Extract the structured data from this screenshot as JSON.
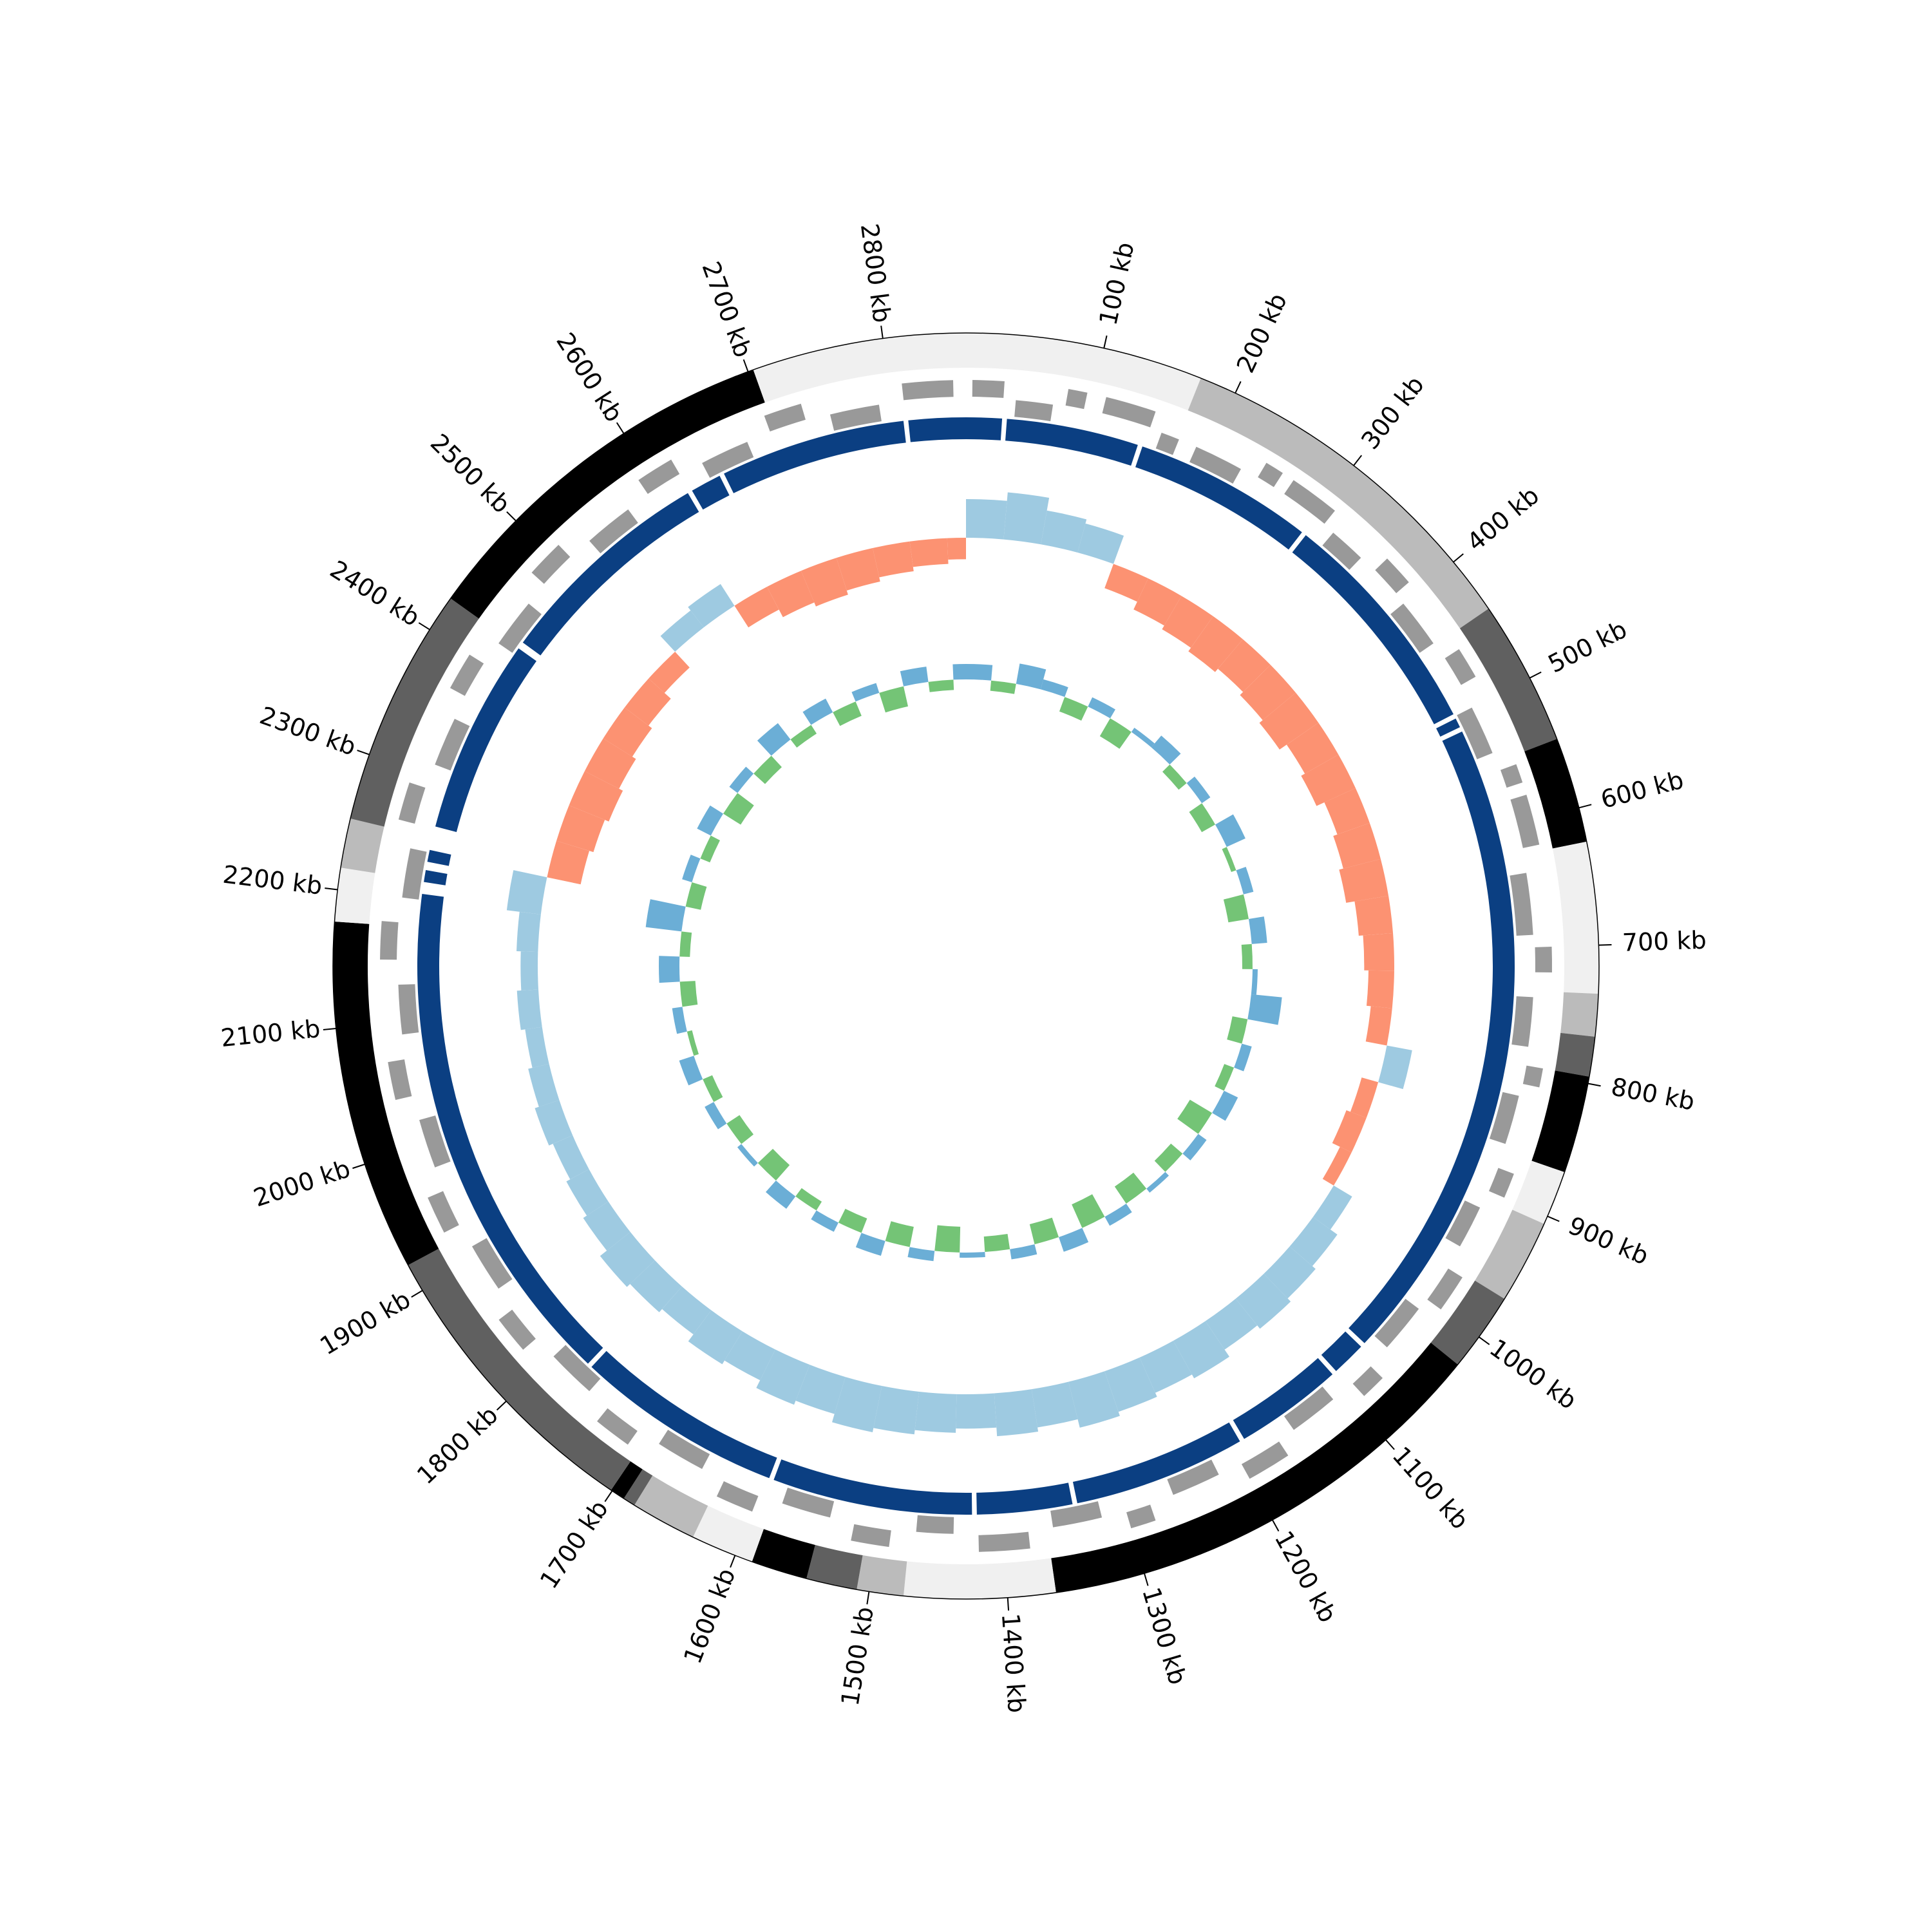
{
  "chart_data": {
    "type": "circos",
    "xlim": [
      0,
      2860
    ],
    "xticks": [
      {
        "value": 100,
        "label": "100 kb"
      },
      {
        "value": 200,
        "label": "200 kb"
      },
      {
        "value": 300,
        "label": "300 kb"
      },
      {
        "value": 400,
        "label": "400 kb"
      },
      {
        "value": 500,
        "label": "500 kb"
      },
      {
        "value": 600,
        "label": "600 kb"
      },
      {
        "value": 700,
        "label": "700 kb"
      },
      {
        "value": 800,
        "label": "800 kb"
      },
      {
        "value": 900,
        "label": "900 kb"
      },
      {
        "value": 1000,
        "label": "1000 kb"
      },
      {
        "value": 1100,
        "label": "1100 kb"
      },
      {
        "value": 1200,
        "label": "1200 kb"
      },
      {
        "value": 1300,
        "label": "1300 kb"
      },
      {
        "value": 1400,
        "label": "1400 kb"
      },
      {
        "value": 1500,
        "label": "1500 kb"
      },
      {
        "value": 1600,
        "label": "1600 kb"
      },
      {
        "value": 1700,
        "label": "1700 kb"
      },
      {
        "value": 1800,
        "label": "1800 kb"
      },
      {
        "value": 1900,
        "label": "1900 kb"
      },
      {
        "value": 2000,
        "label": "2000 kb"
      },
      {
        "value": 2100,
        "label": "2100 kb"
      },
      {
        "value": 2200,
        "label": "2200 kb"
      },
      {
        "value": 2300,
        "label": "2300 kb"
      },
      {
        "value": 2400,
        "label": "2400 kb"
      },
      {
        "value": 2500,
        "label": "2500 kb"
      },
      {
        "value": 2600,
        "label": "2600 kb"
      },
      {
        "value": 2700,
        "label": "2700 kb"
      },
      {
        "value": 2800,
        "label": "2800 kb"
      }
    ],
    "bands": [
      {
        "start": 0,
        "end": 173,
        "color": "#f0f0f0"
      },
      {
        "start": 173,
        "end": 442,
        "color": "#bbbbbb"
      },
      {
        "start": 442,
        "end": 548,
        "color": "#606060"
      },
      {
        "start": 548,
        "end": 625,
        "color": "#000000"
      },
      {
        "start": 625,
        "end": 735,
        "color": "#f0f0f0"
      },
      {
        "start": 735,
        "end": 766,
        "color": "#bbbbbb"
      },
      {
        "start": 766,
        "end": 795,
        "color": "#606060"
      },
      {
        "start": 795,
        "end": 866,
        "color": "#000000"
      },
      {
        "start": 866,
        "end": 906,
        "color": "#f0f0f0"
      },
      {
        "start": 906,
        "end": 967,
        "color": "#bbbbbb"
      },
      {
        "start": 967,
        "end": 1025,
        "color": "#606060"
      },
      {
        "start": 1025,
        "end": 1365,
        "color": "#000000"
      },
      {
        "start": 1365,
        "end": 1475,
        "color": "#f0f0f0"
      },
      {
        "start": 1475,
        "end": 1509,
        "color": "#bbbbbb"
      },
      {
        "start": 1509,
        "end": 1546,
        "color": "#606060"
      },
      {
        "start": 1546,
        "end": 1587,
        "color": "#000000"
      },
      {
        "start": 1587,
        "end": 1633,
        "color": "#f0f0f0"
      },
      {
        "start": 1633,
        "end": 1681,
        "color": "#bbbbbb"
      },
      {
        "start": 1681,
        "end": 1690,
        "color": "#606060"
      },
      {
        "start": 1690,
        "end": 1701,
        "color": "#000000"
      },
      {
        "start": 1701,
        "end": 1921,
        "color": "#606060"
      },
      {
        "start": 1921,
        "end": 2177,
        "color": "#000000"
      },
      {
        "start": 2177,
        "end": 2216,
        "color": "#f0f0f0"
      },
      {
        "start": 2216,
        "end": 2252,
        "color": "#bbbbbb"
      },
      {
        "start": 2252,
        "end": 2427,
        "color": "#606060"
      },
      {
        "start": 2427,
        "end": 2704,
        "color": "#000000"
      },
      {
        "start": 2704,
        "end": 2860,
        "color": "#f0f0f0"
      }
    ],
    "gene_color": "#999999",
    "genes": [
      {
        "start": 5,
        "end": 30,
        "strand": 1
      },
      {
        "start": 40,
        "end": 70,
        "strand": -1
      },
      {
        "start": 80,
        "end": 95,
        "strand": 1
      },
      {
        "start": 110,
        "end": 150,
        "strand": 1
      },
      {
        "start": 160,
        "end": 175,
        "strand": -1
      },
      {
        "start": 190,
        "end": 230,
        "strand": -1
      },
      {
        "start": 245,
        "end": 260,
        "strand": 1
      },
      {
        "start": 270,
        "end": 310,
        "strand": 1
      },
      {
        "start": 320,
        "end": 350,
        "strand": -1
      },
      {
        "start": 365,
        "end": 390,
        "strand": 1
      },
      {
        "start": 400,
        "end": 440,
        "strand": -1
      },
      {
        "start": 455,
        "end": 480,
        "strand": 1
      },
      {
        "start": 500,
        "end": 540,
        "strand": -1
      },
      {
        "start": 555,
        "end": 570,
        "strand": 1
      },
      {
        "start": 580,
        "end": 620,
        "strand": 1
      },
      {
        "start": 640,
        "end": 690,
        "strand": -1
      },
      {
        "start": 700,
        "end": 720,
        "strand": 1
      },
      {
        "start": 740,
        "end": 780,
        "strand": -1
      },
      {
        "start": 795,
        "end": 810,
        "strand": 1
      },
      {
        "start": 820,
        "end": 860,
        "strand": -1
      },
      {
        "start": 880,
        "end": 900,
        "strand": 1
      },
      {
        "start": 915,
        "end": 950,
        "strand": -1
      },
      {
        "start": 970,
        "end": 1000,
        "strand": 1
      },
      {
        "start": 1010,
        "end": 1050,
        "strand": -1
      },
      {
        "start": 1070,
        "end": 1090,
        "strand": 1
      },
      {
        "start": 1110,
        "end": 1150,
        "strand": -1
      },
      {
        "start": 1165,
        "end": 1200,
        "strand": 1
      },
      {
        "start": 1220,
        "end": 1260,
        "strand": -1
      },
      {
        "start": 1280,
        "end": 1300,
        "strand": 1
      },
      {
        "start": 1320,
        "end": 1360,
        "strand": -1
      },
      {
        "start": 1380,
        "end": 1420,
        "strand": 1
      },
      {
        "start": 1440,
        "end": 1470,
        "strand": -1
      },
      {
        "start": 1490,
        "end": 1520,
        "strand": 1
      },
      {
        "start": 1540,
        "end": 1580,
        "strand": -1
      },
      {
        "start": 1600,
        "end": 1630,
        "strand": 1
      },
      {
        "start": 1650,
        "end": 1690,
        "strand": -1
      },
      {
        "start": 1710,
        "end": 1740,
        "strand": 1
      },
      {
        "start": 1760,
        "end": 1800,
        "strand": -1
      },
      {
        "start": 1820,
        "end": 1850,
        "strand": 1
      },
      {
        "start": 1870,
        "end": 1910,
        "strand": -1
      },
      {
        "start": 1930,
        "end": 1960,
        "strand": 1
      },
      {
        "start": 1980,
        "end": 2020,
        "strand": -1
      },
      {
        "start": 2040,
        "end": 2070,
        "strand": 1
      },
      {
        "start": 2090,
        "end": 2130,
        "strand": -1
      },
      {
        "start": 2150,
        "end": 2180,
        "strand": 1
      },
      {
        "start": 2200,
        "end": 2240,
        "strand": -1
      },
      {
        "start": 2260,
        "end": 2290,
        "strand": 1
      },
      {
        "start": 2310,
        "end": 2350,
        "strand": -1
      },
      {
        "start": 2370,
        "end": 2400,
        "strand": 1
      },
      {
        "start": 2420,
        "end": 2460,
        "strand": -1
      },
      {
        "start": 2480,
        "end": 2510,
        "strand": 1
      },
      {
        "start": 2530,
        "end": 2570,
        "strand": -1
      },
      {
        "start": 2590,
        "end": 2620,
        "strand": 1
      },
      {
        "start": 2640,
        "end": 2680,
        "strand": -1
      },
      {
        "start": 2700,
        "end": 2730,
        "strand": 1
      },
      {
        "start": 2750,
        "end": 2790,
        "strand": -1
      },
      {
        "start": 2810,
        "end": 2850,
        "strand": 1
      }
    ],
    "contig_color": "#0b3f82",
    "contigs": [
      {
        "start": 0,
        "end": 30
      },
      {
        "start": 34,
        "end": 145
      },
      {
        "start": 149,
        "end": 300
      },
      {
        "start": 304,
        "end": 498
      },
      {
        "start": 502,
        "end": 510
      },
      {
        "start": 514,
        "end": 1060
      },
      {
        "start": 1064,
        "end": 1093
      },
      {
        "start": 1097,
        "end": 1188
      },
      {
        "start": 1192,
        "end": 1337
      },
      {
        "start": 1341,
        "end": 1421
      },
      {
        "start": 1425,
        "end": 1593
      },
      {
        "start": 1597,
        "end": 1772
      },
      {
        "start": 1776,
        "end": 2205
      },
      {
        "start": 2215,
        "end": 2225
      },
      {
        "start": 2232,
        "end": 2242
      },
      {
        "start": 2262,
        "end": 2426
      },
      {
        "start": 2432,
        "end": 2618
      },
      {
        "start": 2622,
        "end": 2648
      },
      {
        "start": 2652,
        "end": 2808
      },
      {
        "start": 2812,
        "end": 2860
      }
    ],
    "x": [
      0,
      40,
      80,
      120,
      160,
      200,
      240,
      280,
      320,
      360,
      400,
      440,
      480,
      520,
      560,
      600,
      640,
      680,
      720,
      760,
      800,
      840,
      880,
      920,
      960,
      1000,
      1040,
      1080,
      1120,
      1160,
      1200,
      1240,
      1280,
      1320,
      1360,
      1400,
      1440,
      1480,
      1520,
      1560,
      1600,
      1640,
      1680,
      1720,
      1760,
      1800,
      1840,
      1880,
      1920,
      1960,
      2000,
      2040,
      2080,
      2120,
      2160,
      2200,
      2240,
      2280,
      2320,
      2360,
      2400,
      2440,
      2480,
      2520,
      2560,
      2600,
      2640,
      2680,
      2720,
      2760,
      2800,
      2840
    ],
    "gc_skew": {
      "positive_color": "#9ecae1",
      "negative_color": "#fc9272",
      "ylim": [
        -0.15,
        0.15
      ],
      "values": [
        0.09,
        0.11,
        0.08,
        0.07,
        -0.06,
        -0.08,
        -0.09,
        -0.1,
        -0.09,
        -0.1,
        -0.11,
        -0.09,
        -0.1,
        -0.08,
        -0.09,
        -0.1,
        -0.08,
        -0.07,
        -0.06,
        -0.05,
        0.06,
        -0.04,
        -0.05,
        -0.03,
        0.05,
        0.07,
        0.08,
        0.09,
        0.08,
        0.1,
        0.09,
        0.1,
        0.11,
        0.09,
        0.1,
        0.08,
        0.09,
        0.1,
        0.11,
        0.09,
        0.1,
        0.08,
        0.09,
        0.07,
        0.08,
        0.09,
        0.07,
        0.06,
        0.05,
        0.06,
        0.05,
        0.04,
        0.05,
        0.04,
        0.05,
        0.08,
        -0.08,
        -0.09,
        -0.1,
        -0.09,
        -0.08,
        -0.07,
        -0.05,
        0.05,
        0.06,
        -0.06,
        -0.08,
        -0.09,
        -0.08,
        -0.07,
        -0.06,
        -0.05
      ]
    },
    "gc_content": {
      "positive_color": "#6baed6",
      "negative_color": "#74c476",
      "ylim": [
        -0.1,
        0.1
      ],
      "values": [
        0.03,
        -0.02,
        0.04,
        0.02,
        -0.03,
        0.02,
        -0.04,
        0.01,
        0.03,
        -0.02,
        0.02,
        -0.03,
        0.04,
        -0.01,
        0.02,
        -0.04,
        0.03,
        -0.02,
        0.01,
        0.06,
        -0.03,
        0.02,
        -0.02,
        0.03,
        -0.05,
        0.02,
        -0.03,
        0.01,
        -0.04,
        0.02,
        -0.05,
        0.03,
        -0.04,
        0.02,
        -0.03,
        0.01,
        -0.05,
        0.02,
        -0.04,
        0.03,
        -0.03,
        0.02,
        -0.02,
        0.03,
        -0.04,
        0.01,
        -0.03,
        0.02,
        -0.02,
        0.03,
        -0.01,
        0.02,
        -0.03,
        0.04,
        -0.02,
        0.07,
        -0.03,
        0.02,
        -0.02,
        0.03,
        -0.04,
        0.02,
        -0.03,
        0.04,
        -0.02,
        0.03,
        -0.03,
        0.02,
        -0.04,
        0.03,
        -0.02,
        0.03
      ]
    }
  }
}
